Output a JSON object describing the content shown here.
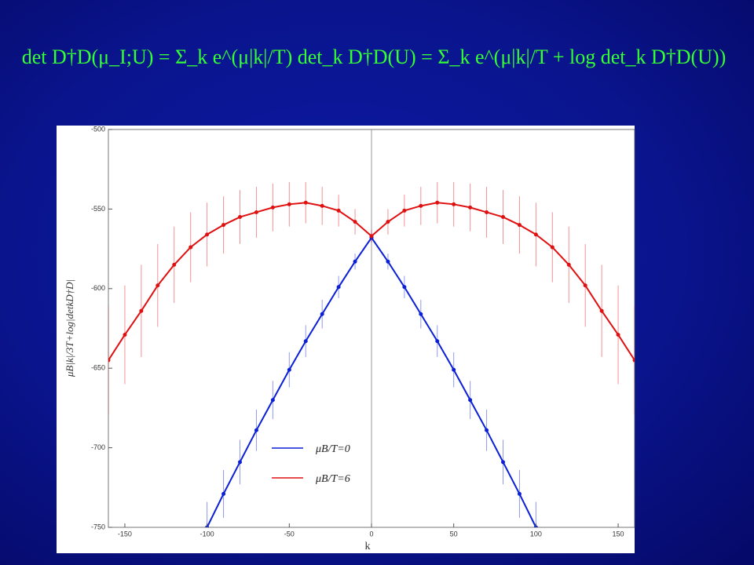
{
  "chart_data": {
    "type": "scatter",
    "title": "det D†D(μ_I;U) = Σ_k e^(μ|k|/T) det_k D†D(U) = Σ_k e^(μ|k|/T + log det_k D†D(U))",
    "x_label": "k",
    "y_label": "μB|k|/3T+log|detkD†D|",
    "x": [
      -160,
      -150,
      -140,
      -130,
      -120,
      -110,
      -100,
      -90,
      -80,
      -70,
      -60,
      -50,
      -40,
      -30,
      -20,
      -10,
      0,
      10,
      20,
      30,
      40,
      50,
      60,
      70,
      80,
      90,
      100,
      110,
      120,
      130,
      140,
      150,
      160
    ],
    "series": [
      {
        "name": "μB/T=0",
        "color": "#0a1fd6",
        "values": [
          null,
          null,
          null,
          null,
          null,
          null,
          -750,
          -729,
          -709,
          -689,
          -670,
          -651,
          -633,
          -616,
          -599,
          -583,
          -568,
          -583,
          -599,
          -616,
          -633,
          -651,
          -670,
          -689,
          -709,
          -729,
          -750,
          null,
          null,
          null,
          null,
          null,
          null
        ],
        "errors": [
          null,
          null,
          null,
          null,
          null,
          null,
          16,
          15,
          14,
          13,
          12,
          11,
          10,
          9,
          7,
          5,
          3,
          5,
          7,
          9,
          10,
          11,
          12,
          13,
          14,
          15,
          16,
          null,
          null,
          null,
          null,
          null,
          null
        ]
      },
      {
        "name": "μB/T=6",
        "color": "#e01010",
        "values": [
          -645,
          -629,
          -614,
          -598,
          -585,
          -574,
          -566,
          -560,
          -555,
          -552,
          -549,
          -547,
          -546,
          -548,
          -551,
          -558,
          -567,
          -558,
          -551,
          -548,
          -546,
          -547,
          -549,
          -552,
          -555,
          -560,
          -566,
          -574,
          -585,
          -598,
          -614,
          -629,
          -645
        ],
        "errors": [
          34,
          31,
          29,
          26,
          24,
          22,
          20,
          18,
          17,
          16,
          15,
          14,
          13,
          12,
          10,
          8,
          4,
          8,
          10,
          12,
          13,
          14,
          15,
          16,
          17,
          18,
          20,
          22,
          24,
          26,
          29,
          31,
          34
        ]
      }
    ],
    "xlim": [
      -160,
      160
    ],
    "ylim": [
      -750,
      -500
    ],
    "xticks": [
      -150,
      -100,
      -50,
      0,
      50,
      100,
      150
    ],
    "yticks": [
      -750,
      -700,
      -650,
      -600,
      -550,
      -500
    ]
  }
}
